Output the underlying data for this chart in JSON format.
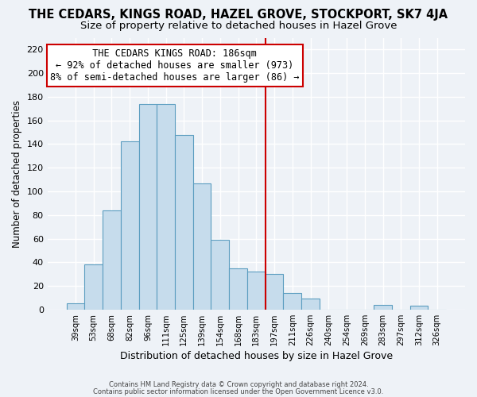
{
  "title": "THE CEDARS, KINGS ROAD, HAZEL GROVE, STOCKPORT, SK7 4JA",
  "subtitle": "Size of property relative to detached houses in Hazel Grove",
  "xlabel": "Distribution of detached houses by size in Hazel Grove",
  "ylabel": "Number of detached properties",
  "footer_line1": "Contains HM Land Registry data © Crown copyright and database right 2024.",
  "footer_line2": "Contains public sector information licensed under the Open Government Licence v3.0.",
  "bin_labels": [
    "39sqm",
    "53sqm",
    "68sqm",
    "82sqm",
    "96sqm",
    "111sqm",
    "125sqm",
    "139sqm",
    "154sqm",
    "168sqm",
    "183sqm",
    "197sqm",
    "211sqm",
    "226sqm",
    "240sqm",
    "254sqm",
    "269sqm",
    "283sqm",
    "297sqm",
    "312sqm",
    "326sqm"
  ],
  "bar_heights": [
    5,
    38,
    84,
    142,
    174,
    174,
    148,
    107,
    59,
    35,
    32,
    30,
    14,
    9,
    0,
    0,
    0,
    4,
    0,
    3,
    0
  ],
  "bar_color": "#c6dcec",
  "bar_edge_color": "#5b9dc0",
  "vline_x_index": 10.5,
  "vline_color": "#cc0000",
  "annotation_title": "THE CEDARS KINGS ROAD: 186sqm",
  "annotation_line1": "← 92% of detached houses are smaller (973)",
  "annotation_line2": "8% of semi-detached houses are larger (86) →",
  "ylim": [
    0,
    230
  ],
  "yticks": [
    0,
    20,
    40,
    60,
    80,
    100,
    120,
    140,
    160,
    180,
    200,
    220
  ],
  "background_color": "#eef2f7",
  "grid_color": "#ffffff",
  "title_fontsize": 10.5,
  "subtitle_fontsize": 9.5,
  "ann_fontsize": 8.5
}
